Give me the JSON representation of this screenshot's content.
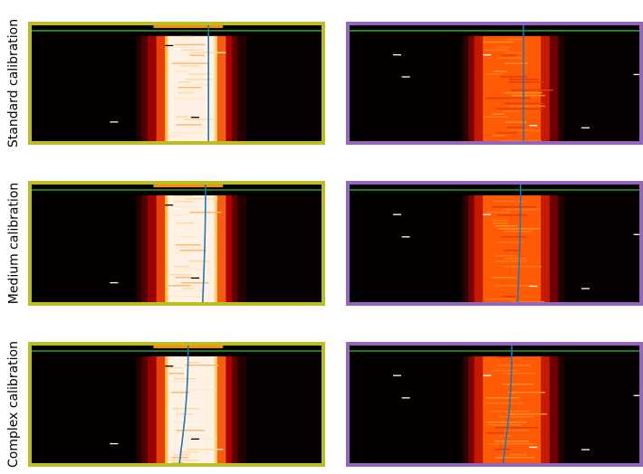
{
  "colors": {
    "left_frame": "#bcbd22",
    "right_frame": "#9467bd",
    "green_line": "#2ca02c",
    "blue_curve": "#1f77b4"
  },
  "rows": [
    {
      "label": "Standard calibration"
    },
    {
      "label": "Medium calibration"
    },
    {
      "label": "Complex calibration"
    }
  ],
  "chart_data": [
    {
      "type": "heatmap",
      "row": "Standard calibration",
      "column": "left",
      "colormap": "hot",
      "intensity": "bright",
      "curve": {
        "top": 0.61,
        "bottom": 0.61
      }
    },
    {
      "type": "heatmap",
      "row": "Standard calibration",
      "column": "right",
      "colormap": "hot",
      "intensity": "dim",
      "curve": {
        "top": 0.6,
        "bottom": 0.6
      }
    },
    {
      "type": "heatmap",
      "row": "Medium calibration",
      "column": "left",
      "colormap": "hot",
      "intensity": "bright",
      "curve": {
        "top": 0.6,
        "bottom": 0.59
      }
    },
    {
      "type": "heatmap",
      "row": "Medium calibration",
      "column": "right",
      "colormap": "hot",
      "intensity": "dim",
      "curve": {
        "top": 0.59,
        "bottom": 0.58
      }
    },
    {
      "type": "heatmap",
      "row": "Complex calibration",
      "column": "left",
      "colormap": "hot",
      "intensity": "bright",
      "curve": {
        "top": 0.54,
        "bottom": 0.51
      }
    },
    {
      "type": "heatmap",
      "row": "Complex calibration",
      "column": "right",
      "colormap": "hot",
      "intensity": "dim",
      "curve": {
        "top": 0.56,
        "bottom": 0.53
      }
    }
  ]
}
